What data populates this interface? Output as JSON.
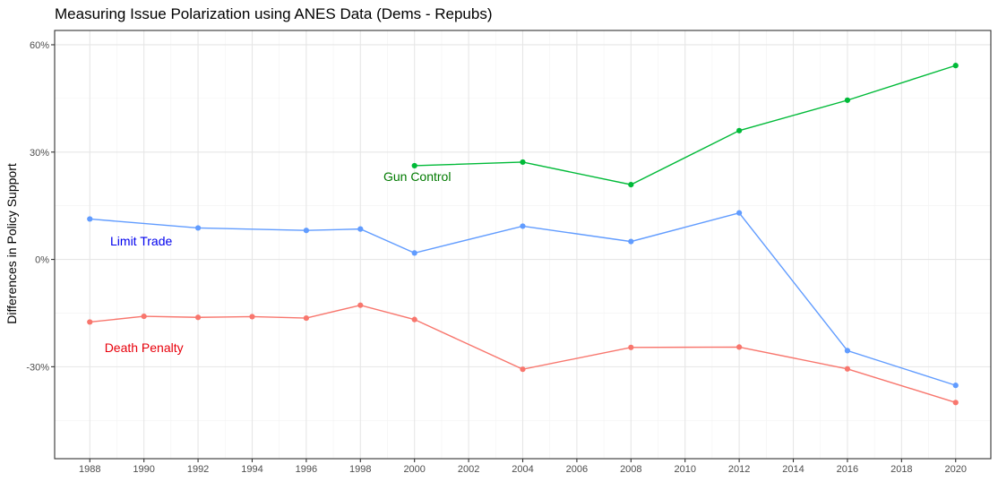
{
  "chart_data": {
    "type": "line",
    "title": "Measuring Issue Polarization using ANES Data (Dems - Repubs)",
    "xlabel": "",
    "ylabel": "Differences in Policy Support",
    "xlim": [
      1986.7,
      2021.3
    ],
    "ylim": [
      -0.557,
      0.64
    ],
    "x_ticks": [
      1988,
      1990,
      1992,
      1994,
      1996,
      1998,
      2000,
      2002,
      2004,
      2006,
      2008,
      2010,
      2012,
      2014,
      2016,
      2018,
      2020
    ],
    "y_ticks": [
      {
        "value": 0.6,
        "label": "60%"
      },
      {
        "value": 0.3,
        "label": "30%"
      },
      {
        "value": 0.0,
        "label": "0%"
      },
      {
        "value": -0.3,
        "label": "-30%"
      }
    ],
    "grid": true,
    "legend": "none",
    "series": [
      {
        "name": "Gun Control",
        "color": "#00ba38",
        "points": [
          [
            2000,
            0.262
          ],
          [
            2004,
            0.272
          ],
          [
            2008,
            0.209
          ],
          [
            2012,
            0.36
          ],
          [
            2016,
            0.445
          ],
          [
            2020,
            0.542
          ]
        ]
      },
      {
        "name": "Limit Trade",
        "color": "#619cff",
        "points": [
          [
            1988,
            0.113
          ],
          [
            1992,
            0.088
          ],
          [
            1996,
            0.081
          ],
          [
            1998,
            0.085
          ],
          [
            2000,
            0.018
          ],
          [
            2004,
            0.093
          ],
          [
            2008,
            0.05
          ],
          [
            2012,
            0.13
          ],
          [
            2016,
            -0.255
          ],
          [
            2020,
            -0.352
          ]
        ]
      },
      {
        "name": "Death Penalty",
        "color": "#f8766d",
        "points": [
          [
            1988,
            -0.175
          ],
          [
            1990,
            -0.159
          ],
          [
            1992,
            -0.162
          ],
          [
            1994,
            -0.16
          ],
          [
            1996,
            -0.164
          ],
          [
            1998,
            -0.128
          ],
          [
            2000,
            -0.168
          ],
          [
            2004,
            -0.307
          ],
          [
            2008,
            -0.246
          ],
          [
            2012,
            -0.245
          ],
          [
            2016,
            -0.306
          ],
          [
            2020,
            -0.4
          ]
        ]
      }
    ],
    "annotations": [
      {
        "text": "Gun Control",
        "x": 2000.1,
        "y": 0.228,
        "color": "#007a00"
      },
      {
        "text": "Limit Trade",
        "x": 1989.9,
        "y": 0.048,
        "color": "#0000ee"
      },
      {
        "text": "Death Penalty",
        "x": 1990.0,
        "y": -0.25,
        "color": "#e8000b"
      }
    ]
  }
}
